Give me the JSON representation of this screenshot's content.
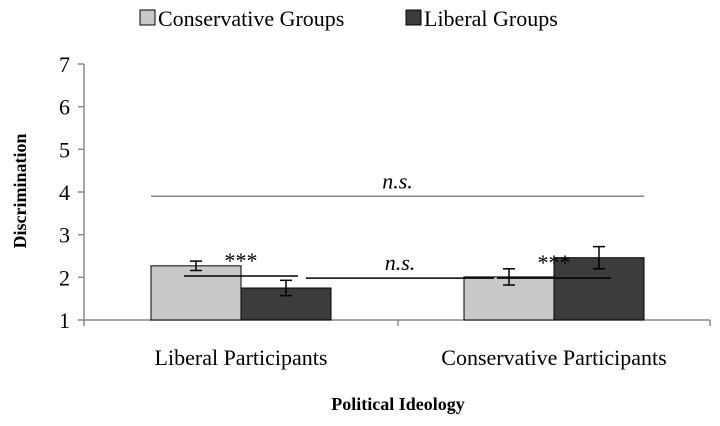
{
  "chart_data": {
    "type": "bar",
    "categories": [
      "Liberal Participants",
      "Conservative Participants"
    ],
    "series": [
      {
        "name": "Conservative Groups",
        "values": [
          2.27,
          2.01
        ],
        "errors": [
          0.11,
          0.19
        ],
        "color": "#c8c8c8"
      },
      {
        "name": "Liberal Groups",
        "values": [
          1.75,
          2.46
        ],
        "errors": [
          0.18,
          0.26
        ],
        "color": "#3c3c3c"
      }
    ],
    "xlabel": "Political Ideology",
    "ylabel": "Discrimination",
    "ylim": [
      1,
      7
    ],
    "yticks": [
      "1",
      "2",
      "3",
      "4",
      "5",
      "6",
      "7"
    ],
    "grid": false,
    "legend_position": "top",
    "annotations": [
      {
        "text": "n.s.",
        "italic": true,
        "level": 3.9,
        "from": {
          "category": 0,
          "series": 0
        },
        "to": {
          "category": 1,
          "series": 1
        }
      },
      {
        "text": "***",
        "italic": false,
        "level": 2.03,
        "from": {
          "category": 0,
          "series": 0
        },
        "to": {
          "category": 0,
          "series": 1
        }
      },
      {
        "text": "n.s.",
        "italic": true,
        "level": 1.98,
        "from": {
          "category": 0,
          "series": 1
        },
        "to": {
          "category": 1,
          "series": 0
        }
      },
      {
        "text": "***",
        "italic": false,
        "level": 1.98,
        "from": {
          "category": 1,
          "series": 0
        },
        "to": {
          "category": 1,
          "series": 1
        }
      }
    ]
  }
}
